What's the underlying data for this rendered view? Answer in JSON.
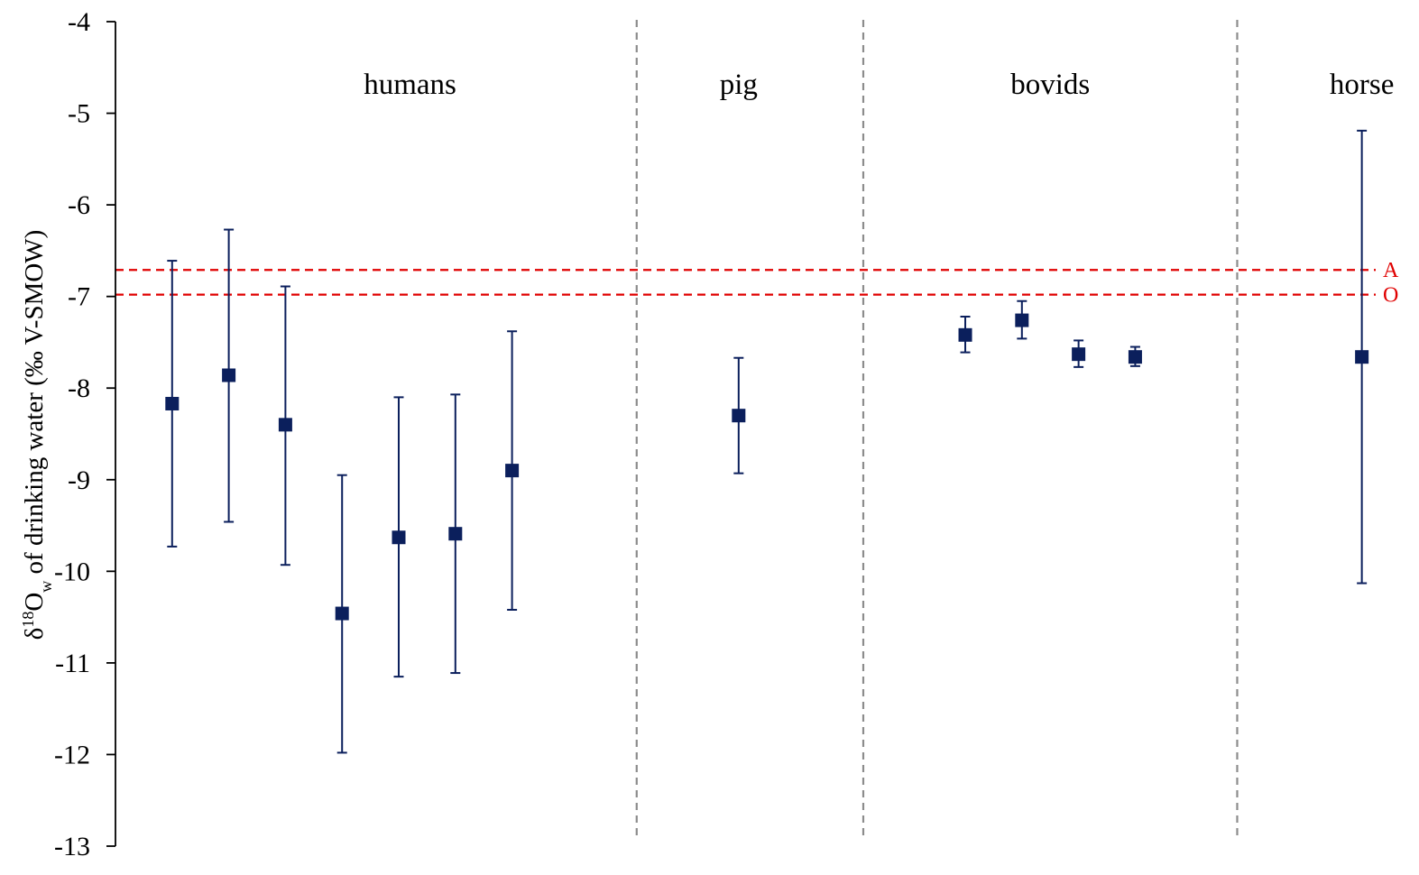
{
  "chart_data": {
    "type": "scatter",
    "ylabel": {
      "prefix": "δ",
      "sup": "18",
      "main": "O",
      "sub": "w",
      "rest": " of drinking water (‰ V-SMOW)"
    },
    "ylim": [
      -13,
      -4
    ],
    "yticks": [
      -4,
      -5,
      -6,
      -7,
      -8,
      -9,
      -10,
      -11,
      -12,
      -13
    ],
    "x_range": [
      0,
      23.2
    ],
    "groups": [
      {
        "name": "humans",
        "label_x": 5.2
      },
      {
        "name": "pig",
        "label_x": 11.0
      },
      {
        "name": "bovids",
        "label_x": 16.5
      },
      {
        "name": "horse",
        "label_x": 22.0
      }
    ],
    "group_dividers_x": [
      9.2,
      13.2,
      19.8
    ],
    "series": [
      {
        "marker": "square",
        "color": "#0b1f5c",
        "points": [
          {
            "group": "humans",
            "x": 1.0,
            "y": -8.17,
            "y_low": -9.73,
            "y_high": -6.61
          },
          {
            "group": "humans",
            "x": 2.0,
            "y": -7.86,
            "y_low": -9.46,
            "y_high": -6.27
          },
          {
            "group": "humans",
            "x": 3.0,
            "y": -8.4,
            "y_low": -9.93,
            "y_high": -6.89
          },
          {
            "group": "humans",
            "x": 4.0,
            "y": -10.46,
            "y_low": -11.98,
            "y_high": -8.95
          },
          {
            "group": "humans",
            "x": 5.0,
            "y": -9.63,
            "y_low": -11.15,
            "y_high": -8.1
          },
          {
            "group": "humans",
            "x": 6.0,
            "y": -9.59,
            "y_low": -11.11,
            "y_high": -8.07
          },
          {
            "group": "humans",
            "x": 7.0,
            "y": -8.9,
            "y_low": -10.42,
            "y_high": -7.38
          },
          {
            "group": "pig",
            "x": 11.0,
            "y": -8.3,
            "y_low": -8.93,
            "y_high": -7.67
          },
          {
            "group": "bovids",
            "x": 15.0,
            "y": -7.42,
            "y_low": -7.61,
            "y_high": -7.22
          },
          {
            "group": "bovids",
            "x": 16.0,
            "y": -7.26,
            "y_low": -7.46,
            "y_high": -7.05
          },
          {
            "group": "bovids",
            "x": 17.0,
            "y": -7.63,
            "y_low": -7.77,
            "y_high": -7.48
          },
          {
            "group": "bovids",
            "x": 18.0,
            "y": -7.66,
            "y_low": -7.76,
            "y_high": -7.55
          },
          {
            "group": "horse",
            "x": 22.0,
            "y": -7.66,
            "y_low": -10.13,
            "y_high": -5.19
          }
        ]
      }
    ],
    "reference_lines": [
      {
        "label": "A",
        "y": -6.71,
        "color": "#e00000"
      },
      {
        "label": "O",
        "y": -6.98,
        "color": "#e00000"
      }
    ],
    "grid": false,
    "legend": "none"
  }
}
